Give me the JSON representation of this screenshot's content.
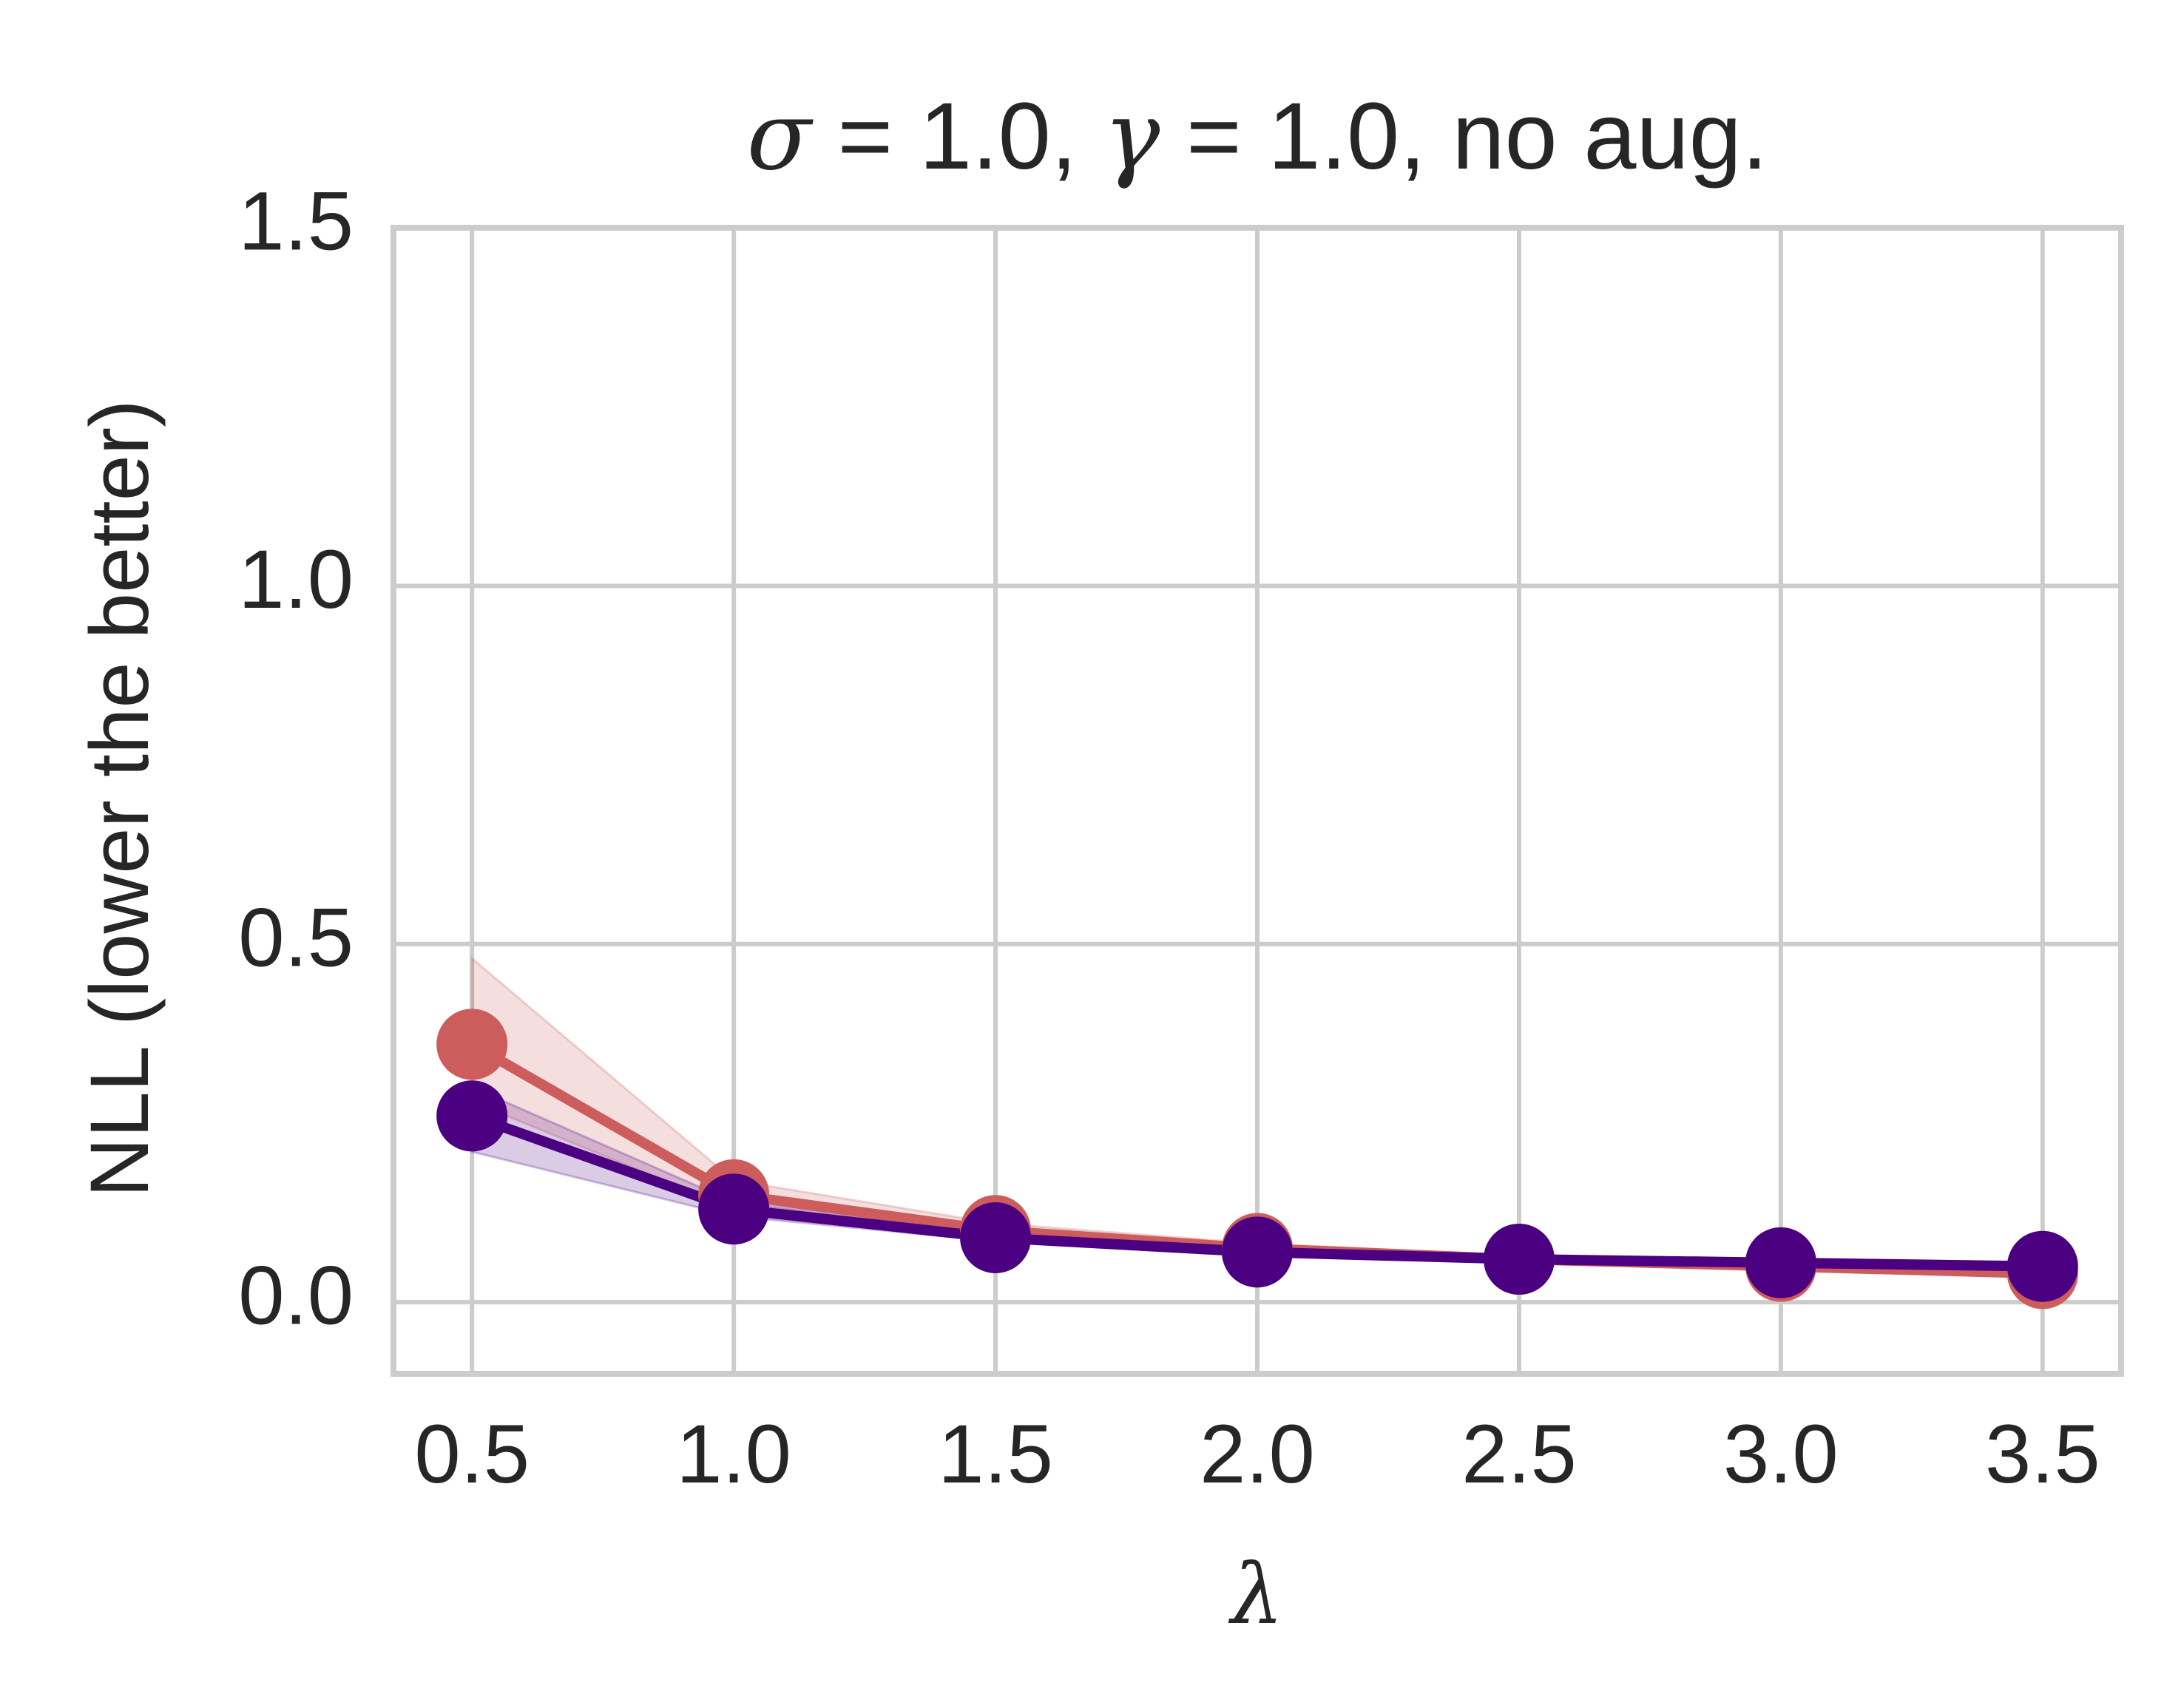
{
  "chart_data": {
    "type": "line",
    "title_parts": [
      {
        "text": "σ",
        "math": true
      },
      {
        "text": " = 1.0, ",
        "math": false
      },
      {
        "text": "γ",
        "math": true
      },
      {
        "text": " = 1.0, no aug.",
        "math": false
      }
    ],
    "xlabel": "λ",
    "ylabel": "NLL (lower the better)",
    "x": [
      0.5,
      1.0,
      1.5,
      2.0,
      2.5,
      3.0,
      3.5
    ],
    "xticks": [
      "0.5",
      "1.0",
      "1.5",
      "2.0",
      "2.5",
      "3.0",
      "3.5"
    ],
    "yticks": [
      "0.0",
      "0.5",
      "1.0",
      "1.5"
    ],
    "xlim": [
      0.35,
      3.65
    ],
    "ylim": [
      -0.1,
      1.5
    ],
    "grid": true,
    "legend": "none",
    "series": [
      {
        "color": "#cd5c5c",
        "values": [
          0.36,
          0.15,
          0.1,
          0.075,
          0.06,
          0.05,
          0.04
        ],
        "band_low": [
          0.28,
          0.13,
          0.09,
          0.068,
          0.055,
          0.045,
          0.035
        ],
        "band_high": [
          0.48,
          0.17,
          0.11,
          0.082,
          0.065,
          0.055,
          0.045
        ]
      },
      {
        "color": "#4b0082",
        "values": [
          0.26,
          0.13,
          0.09,
          0.07,
          0.06,
          0.055,
          0.05
        ],
        "band_low": [
          0.21,
          0.12,
          0.085,
          0.065,
          0.055,
          0.05,
          0.045
        ],
        "band_high": [
          0.3,
          0.14,
          0.095,
          0.075,
          0.065,
          0.06,
          0.055
        ]
      }
    ]
  }
}
